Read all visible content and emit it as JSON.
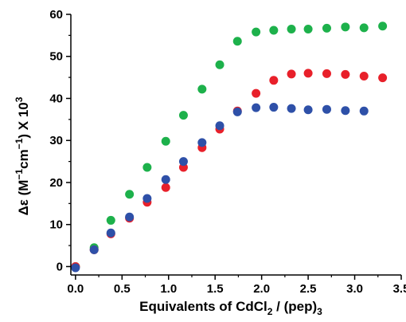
{
  "chart_data": {
    "type": "scatter",
    "xlabel": {
      "main": "Equivalents of CdCl",
      "sub1": "2",
      "mid": " / (pep)",
      "sub2": "3"
    },
    "ylabel": {
      "prefix": "Δε (M",
      "sup1": "−1",
      "mid": "cm",
      "sup2": "−1",
      "suffix": ") X 10",
      "sup3": "3"
    },
    "xlim": [
      -0.05,
      3.5
    ],
    "ylim": [
      -2,
      60
    ],
    "x_ticks": [
      "0.0",
      "0.5",
      "1.0",
      "1.5",
      "2.0",
      "2.5",
      "3.0",
      "3.5"
    ],
    "y_ticks": [
      "0",
      "10",
      "20",
      "30",
      "40",
      "50",
      "60"
    ],
    "x_tick_values": [
      0.0,
      0.5,
      1.0,
      1.5,
      2.0,
      2.5,
      3.0,
      3.5
    ],
    "y_tick_values": [
      0,
      10,
      20,
      30,
      40,
      50,
      60
    ],
    "grid": false,
    "legend": "none",
    "series": [
      {
        "color": "#1db14b",
        "x": [
          0.0,
          0.2,
          0.38,
          0.58,
          0.77,
          0.97,
          1.16,
          1.36,
          1.55,
          1.74,
          1.94,
          2.13,
          2.32,
          2.5,
          2.7,
          2.9,
          3.1,
          3.3
        ],
        "y": [
          0,
          4.5,
          11,
          17.2,
          23.6,
          29.8,
          36,
          42.2,
          48,
          53.6,
          55.8,
          56.2,
          56.5,
          56.5,
          56.7,
          57,
          56.8,
          57.2
        ]
      },
      {
        "color": "#e8202a",
        "x": [
          0.0,
          0.2,
          0.38,
          0.58,
          0.77,
          0.97,
          1.16,
          1.36,
          1.55,
          1.74,
          1.94,
          2.13,
          2.32,
          2.5,
          2.7,
          2.9,
          3.1,
          3.3
        ],
        "y": [
          0,
          4,
          7.8,
          11.5,
          15.3,
          18.8,
          23.6,
          28.3,
          32.7,
          37,
          41.2,
          44.3,
          45.8,
          46,
          45.9,
          45.7,
          45.3,
          44.9
        ]
      },
      {
        "color": "#2e50a8",
        "x": [
          0.0,
          0.2,
          0.38,
          0.58,
          0.77,
          0.97,
          1.16,
          1.36,
          1.55,
          1.74,
          1.94,
          2.13,
          2.32,
          2.5,
          2.7,
          2.9,
          3.1
        ],
        "y": [
          -0.3,
          4,
          8,
          11.8,
          16.2,
          20.7,
          25,
          29.5,
          33.5,
          36.8,
          37.8,
          37.9,
          37.6,
          37.3,
          37.4,
          37.1,
          37
        ]
      }
    ]
  }
}
